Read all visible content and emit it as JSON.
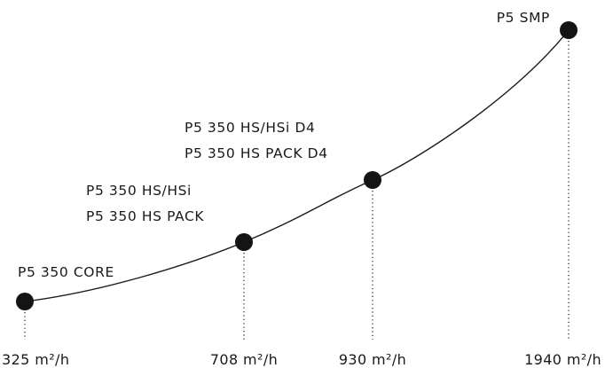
{
  "chart_data": {
    "type": "line",
    "unit": "m²/h",
    "grid": false,
    "points": [
      {
        "value": 325,
        "tick": "325 m²/h",
        "labels": [
          "P5 350 CORE"
        ]
      },
      {
        "value": 708,
        "tick": "708 m²/h",
        "labels": [
          "P5 350 HS/HSi",
          "P5 350 HS PACK"
        ]
      },
      {
        "value": 930,
        "tick": "930 m²/h",
        "labels": [
          "P5 350 HS/HSi D4",
          "P5 350 HS PACK D4"
        ]
      },
      {
        "value": 1940,
        "tick": "1940 m²/h",
        "labels": [
          "P5 SMP"
        ]
      }
    ],
    "colors": {
      "ink": "#141414",
      "background": "#ffffff"
    }
  }
}
